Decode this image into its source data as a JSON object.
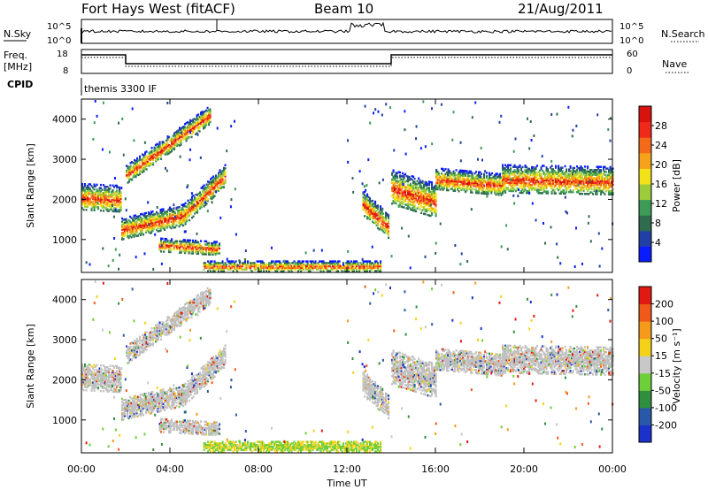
{
  "header": {
    "station": "Fort Hays West (fitACF)",
    "beam": "Beam 10",
    "date": "21/Aug/2011"
  },
  "top_panels": {
    "nsky_label": "N.Sky",
    "nsky_ticks": [
      "10^5",
      "10^0"
    ],
    "nsearch_label": "N.Search",
    "nsearch_ticks": [
      "10^5",
      "10^0"
    ],
    "freq_label": "Freq.",
    "freq_unit": "[MHz]",
    "freq_ticks": [
      "18",
      "8"
    ],
    "nave_label": "Nave",
    "nave_ticks": [
      "60",
      "0"
    ],
    "cpid_label": "CPID",
    "cpid_text": "themis 3300 IF"
  },
  "chart_data": [
    {
      "type": "heatmap",
      "name": "power",
      "ylabel": "Slant Range [km]",
      "xlabel": "",
      "ylim": [
        180,
        4500
      ],
      "xlim": [
        0,
        24
      ],
      "yticks": [
        "1000",
        "2000",
        "3000",
        "4000"
      ],
      "colorbar": {
        "label": "Power [dB]",
        "ticks": [
          "4",
          "8",
          "12",
          "16",
          "20",
          "24",
          "28"
        ],
        "colors": [
          "#0a1cff",
          "#223fa6",
          "#2f6b4e",
          "#3d9a57",
          "#9ccc3c",
          "#f2e21a",
          "#f6a21b",
          "#f26a1a",
          "#ef2a1a",
          "#d7130f"
        ]
      },
      "echo_bands": [
        {
          "t": [
            0.0,
            1.8
          ],
          "center": [
            2050,
            2000
          ],
          "width": 320
        },
        {
          "t": [
            1.8,
            4.6
          ],
          "center": [
            1250,
            1600
          ],
          "width": 260
        },
        {
          "t": [
            4.6,
            6.5
          ],
          "center": [
            1600,
            2600
          ],
          "width": 260
        },
        {
          "t": [
            2.0,
            5.8
          ],
          "center": [
            2600,
            4100
          ],
          "width": 220
        },
        {
          "t": [
            3.5,
            6.2
          ],
          "center": [
            850,
            760
          ],
          "width": 160
        },
        {
          "t": [
            5.5,
            13.5
          ],
          "center": [
            320,
            320
          ],
          "width": 120
        },
        {
          "t": [
            12.7,
            13.9
          ],
          "center": [
            1900,
            1300
          ],
          "width": 300
        },
        {
          "t": [
            14.0,
            16.0
          ],
          "center": [
            2300,
            1950
          ],
          "width": 420
        },
        {
          "t": [
            16.0,
            19.0
          ],
          "center": [
            2500,
            2350
          ],
          "width": 260
        },
        {
          "t": [
            19.0,
            24.0
          ],
          "center": [
            2500,
            2450
          ],
          "width": 340
        }
      ]
    },
    {
      "type": "heatmap",
      "name": "velocity",
      "ylabel": "Slant Range [km]",
      "xlabel": "Time UT",
      "ylim": [
        180,
        4500
      ],
      "xlim": [
        0,
        24
      ],
      "xticks": [
        "00:00",
        "04:00",
        "08:00",
        "12:00",
        "16:00",
        "20:00",
        "00:00"
      ],
      "yticks": [
        "1000",
        "2000",
        "3000",
        "4000"
      ],
      "colorbar": {
        "label": "Velocity [m s⁻¹]",
        "ticks": [
          "200",
          "100",
          "50",
          "15",
          "-15",
          "-50",
          "-100",
          "-200"
        ],
        "colors": [
          "#1b31c9",
          "#2a58a8",
          "#2f8f3f",
          "#6fcf3a",
          "#c8c8c8",
          "#f5d21a",
          "#f59a1b",
          "#ef5a1a",
          "#e01a12"
        ],
        "ground_scatter_color": "#c0c0c0"
      }
    }
  ]
}
